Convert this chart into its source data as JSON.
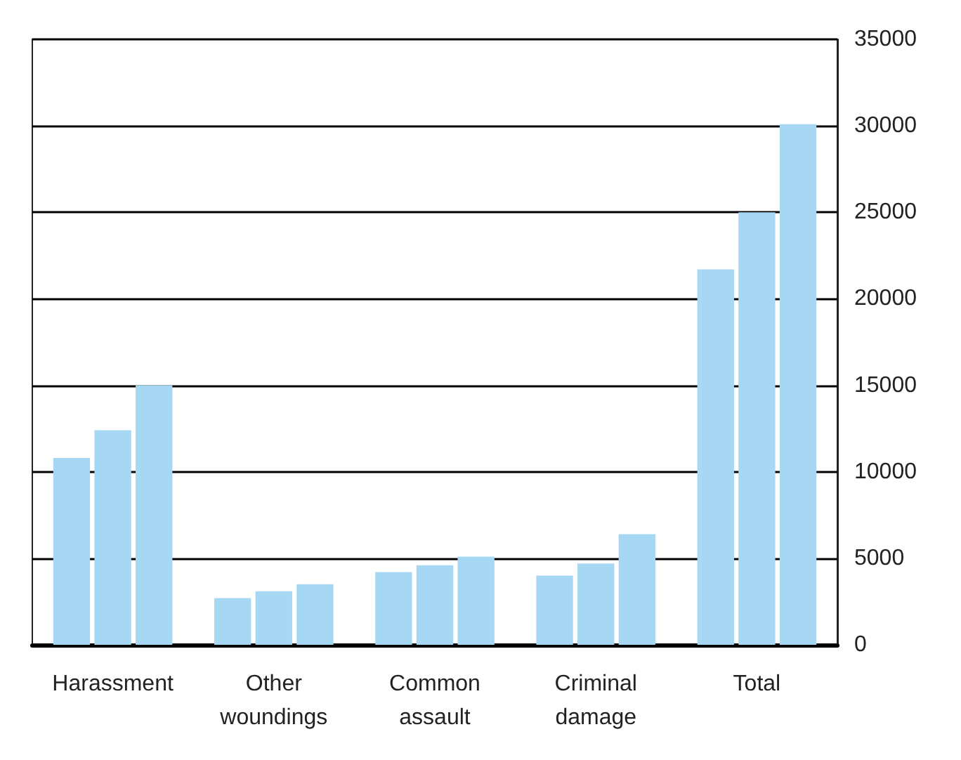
{
  "chart_data": {
    "type": "bar",
    "categories": [
      "Harassment",
      "Other\nwoundings",
      "Common\nassault",
      "Criminal\ndamage",
      "Total"
    ],
    "series": [
      {
        "color": "#a6d8f3",
        "values": [
          10800,
          2700,
          4200,
          4000,
          21700
        ]
      },
      {
        "color": "#a6d8f3",
        "values": [
          12400,
          3100,
          4600,
          4700,
          25000
        ]
      },
      {
        "color": "#a6d8f3",
        "values": [
          15000,
          3500,
          5100,
          6400,
          30100
        ]
      }
    ],
    "ylim": [
      0,
      35000
    ],
    "yticks": [
      0,
      5000,
      10000,
      15000,
      20000,
      25000,
      30000,
      35000
    ],
    "grid": "y"
  }
}
